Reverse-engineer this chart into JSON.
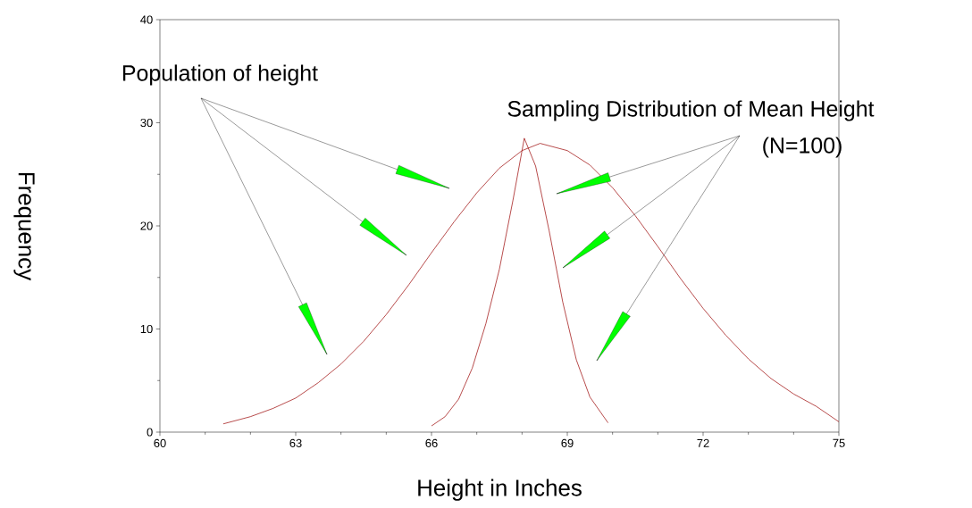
{
  "chart_data": {
    "type": "line",
    "xlabel": "Height in Inches",
    "ylabel": "Frequency",
    "annotations": [
      "Population of height",
      "Sampling Distribution of Mean Height",
      "(N=100)"
    ],
    "xlim": [
      60,
      75
    ],
    "xticks": [
      60,
      63,
      66,
      69,
      72,
      75
    ],
    "ylim": [
      0,
      40
    ],
    "yticks": [
      0,
      10,
      20,
      30,
      40
    ],
    "grid": false,
    "marker": "none",
    "line_style": "solid",
    "series": [
      {
        "color": "#990000",
        "x": [
          61.4,
          62,
          62.5,
          63,
          63.5,
          64,
          64.5,
          65,
          65.5,
          66,
          66.5,
          67,
          67.5,
          68,
          68.4,
          69,
          69.5,
          70,
          70.5,
          71,
          71.5,
          72,
          72.5,
          73,
          73.5,
          74,
          74.5,
          75
        ],
        "values": [
          0.8,
          1.5,
          2.3,
          3.3,
          4.8,
          6.6,
          8.8,
          11.4,
          14.3,
          17.4,
          20.4,
          23.2,
          25.6,
          27.3,
          28,
          27.3,
          25.9,
          23.7,
          21,
          18,
          14.9,
          12,
          9.4,
          7.1,
          5.2,
          3.7,
          2.5,
          1.0
        ]
      },
      {
        "color": "#990000",
        "x": [
          66,
          66.3,
          66.6,
          66.9,
          67.2,
          67.5,
          67.8,
          68.05,
          68.3,
          68.6,
          68.9,
          69.2,
          69.5,
          69.9
        ],
        "values": [
          0.6,
          1.5,
          3.2,
          6.2,
          10.5,
          15.8,
          22.5,
          28.5,
          25.8,
          19.5,
          12.6,
          7.0,
          3.4,
          0.9
        ]
      }
    ]
  }
}
